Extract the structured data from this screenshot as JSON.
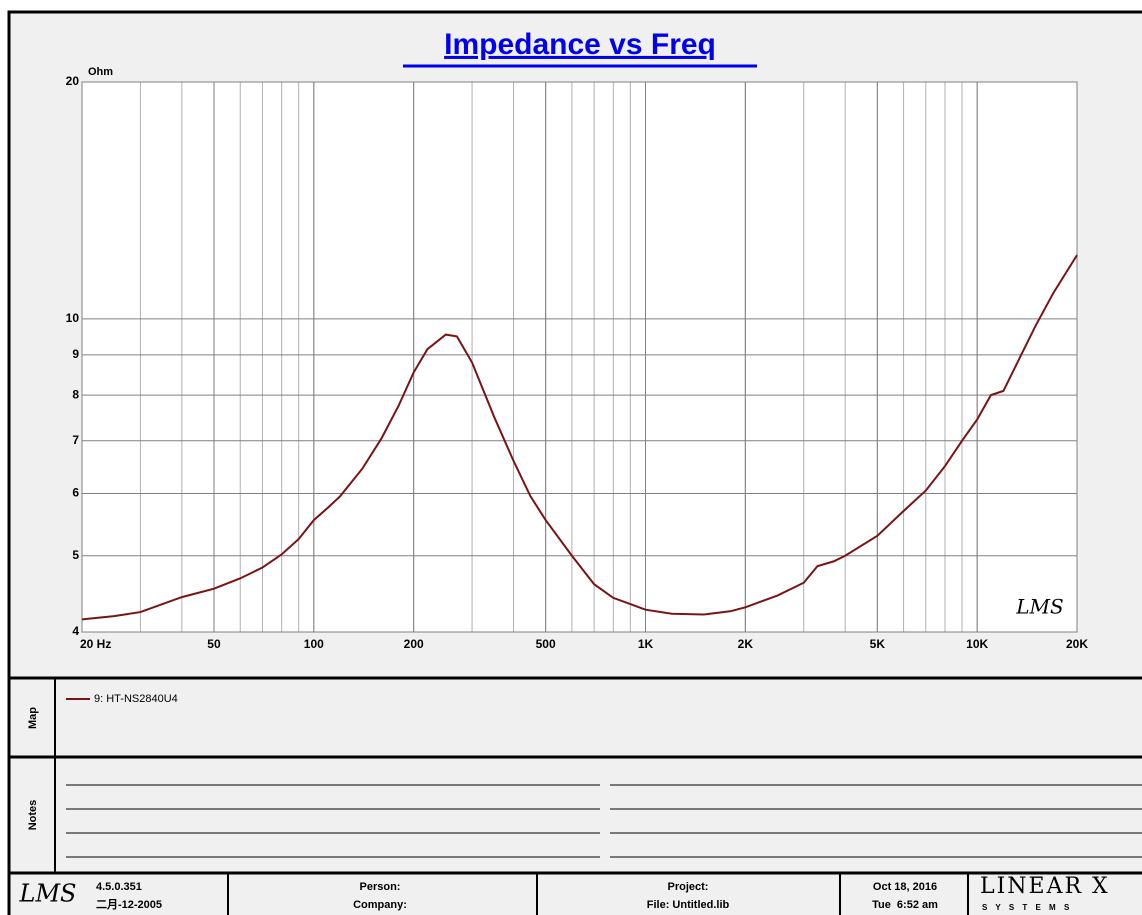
{
  "chart_data": {
    "type": "line",
    "title": "Impedance vs Freq",
    "y_label": "Ohm",
    "plot_logo": "LMS",
    "xscale": "log",
    "yscale": "log",
    "grid": true,
    "xlim": [
      20,
      20000
    ],
    "ylim": [
      4,
      20
    ],
    "xticks": [
      {
        "value": 20,
        "label": "20 Hz"
      },
      50,
      100,
      200,
      500,
      {
        "value": 1000,
        "label": "1K"
      },
      {
        "value": 2000,
        "label": "2K"
      },
      {
        "value": 5000,
        "label": "5K"
      },
      {
        "value": 10000,
        "label": "10K"
      },
      {
        "value": 20000,
        "label": "20K"
      }
    ],
    "yticks": [
      4,
      5,
      6,
      7,
      8,
      9,
      10,
      20
    ],
    "x": [
      20,
      25,
      30,
      40,
      50,
      60,
      70,
      80,
      90,
      100,
      110,
      120,
      140,
      160,
      180,
      200,
      220,
      250,
      270,
      300,
      350,
      400,
      450,
      500,
      600,
      700,
      800,
      900,
      1000,
      1200,
      1500,
      1800,
      2000,
      2500,
      3000,
      3300,
      3700,
      4000,
      5000,
      6000,
      7000,
      8000,
      9000,
      10000,
      11000,
      12000,
      15000,
      17000,
      20000
    ],
    "series": [
      {
        "name": "9: HT-NS2840U4",
        "color": "#7a1414",
        "values": [
          4.15,
          4.19,
          4.24,
          4.43,
          4.54,
          4.68,
          4.83,
          5.02,
          5.25,
          5.55,
          5.75,
          5.95,
          6.45,
          7.05,
          7.75,
          8.55,
          9.15,
          9.55,
          9.5,
          8.8,
          7.5,
          6.6,
          5.95,
          5.55,
          5.0,
          4.6,
          4.42,
          4.34,
          4.27,
          4.22,
          4.21,
          4.25,
          4.3,
          4.45,
          4.62,
          4.85,
          4.92,
          5.0,
          5.3,
          5.7,
          6.05,
          6.5,
          7.0,
          7.45,
          8.0,
          8.1,
          9.8,
          10.8,
          12.05
        ]
      }
    ]
  },
  "panels": {
    "map": "Map",
    "notes": "Notes"
  },
  "footer": {
    "logo": "LMS",
    "version": "4.5.0.351",
    "build_date": "二月-12-2005",
    "person": "Person:",
    "company": "Company:",
    "project": "Project:",
    "file": "File: Untitled.lib",
    "date": "Oct 18, 2016",
    "time": "Tue  6:52 am",
    "brand": "LINEAR X",
    "brand_sub": "S Y S T E M S"
  }
}
